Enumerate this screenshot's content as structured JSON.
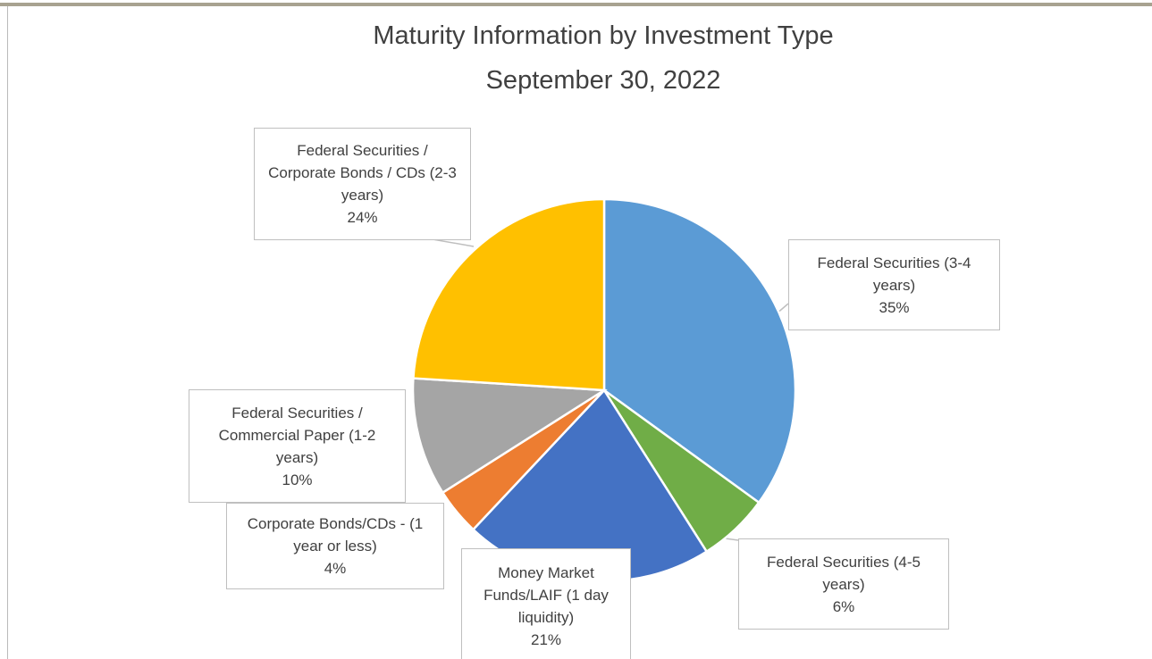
{
  "chart_data": {
    "type": "pie",
    "title": "Maturity Information by Investment Type",
    "subtitle": "September 30, 2022",
    "categories": [
      "Federal Securities (3-4 years)",
      "Federal Securities (4-5 years)",
      "Money Market Funds/LAIF (1 day liquidity)",
      "Corporate Bonds/CDs - (1 year or less)",
      "Federal Securities / Commercial Paper (1-2 years)",
      "Federal Securities / Corporate Bonds / CDs (2-3 years)"
    ],
    "values": [
      35,
      6,
      21,
      4,
      10,
      24
    ],
    "value_labels": [
      "35%",
      "6%",
      "21%",
      "4%",
      "10%",
      "24%"
    ],
    "colors": [
      "#5b9bd5",
      "#70ad47",
      "#4472c4",
      "#ed7d31",
      "#a5a5a5",
      "#ffc000"
    ]
  }
}
